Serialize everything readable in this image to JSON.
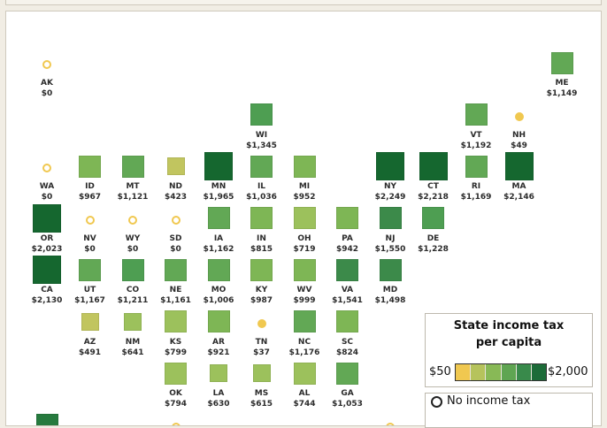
{
  "legend": {
    "title_line1": "State income tax",
    "title_line2": "per capita",
    "min_label": "$50",
    "max_label": "$2,000",
    "scale_colors": [
      "#f0c850",
      "#b6c35c",
      "#88b956",
      "#5fa552",
      "#398a4b",
      "#1c6b38"
    ],
    "no_tax_label": "No income tax"
  },
  "colors": {
    "no_tax_circle": "#f0c850",
    "scale": [
      "#c1c55f",
      "#9cc15c",
      "#7eb655",
      "#62a855",
      "#4e9e52",
      "#3c8a4a",
      "#267a3e",
      "#15672f"
    ]
  },
  "states": [
    {
      "abbr": "AK",
      "value": "$0",
      "amount": 0,
      "marker": "circle",
      "col": 0,
      "row": 0
    },
    {
      "abbr": "ME",
      "value": "$1,149",
      "amount": 1149,
      "marker": "square",
      "col": 12,
      "row": 0
    },
    {
      "abbr": "WI",
      "value": "$1,345",
      "amount": 1345,
      "marker": "square",
      "col": 5,
      "row": 1
    },
    {
      "abbr": "VT",
      "value": "$1,192",
      "amount": 1192,
      "marker": "square",
      "col": 10,
      "row": 1
    },
    {
      "abbr": "NH",
      "value": "$49",
      "amount": 49,
      "marker": "dot",
      "col": 11,
      "row": 1
    },
    {
      "abbr": "WA",
      "value": "$0",
      "amount": 0,
      "marker": "circle",
      "col": 0,
      "row": 2
    },
    {
      "abbr": "ID",
      "value": "$967",
      "amount": 967,
      "marker": "square",
      "col": 1,
      "row": 2
    },
    {
      "abbr": "MT",
      "value": "$1,121",
      "amount": 1121,
      "marker": "square",
      "col": 2,
      "row": 2
    },
    {
      "abbr": "ND",
      "value": "$423",
      "amount": 423,
      "marker": "square",
      "col": 3,
      "row": 2
    },
    {
      "abbr": "MN",
      "value": "$1,965",
      "amount": 1965,
      "marker": "square",
      "col": 4,
      "row": 2
    },
    {
      "abbr": "IL",
      "value": "$1,036",
      "amount": 1036,
      "marker": "square",
      "col": 5,
      "row": 2
    },
    {
      "abbr": "MI",
      "value": "$952",
      "amount": 952,
      "marker": "square",
      "col": 6,
      "row": 2
    },
    {
      "abbr": "NY",
      "value": "$2,249",
      "amount": 2249,
      "marker": "square",
      "col": 8,
      "row": 2
    },
    {
      "abbr": "CT",
      "value": "$2,218",
      "amount": 2218,
      "marker": "square",
      "col": 9,
      "row": 2
    },
    {
      "abbr": "RI",
      "value": "$1,169",
      "amount": 1169,
      "marker": "square",
      "col": 10,
      "row": 2
    },
    {
      "abbr": "MA",
      "value": "$2,146",
      "amount": 2146,
      "marker": "square",
      "col": 11,
      "row": 2
    },
    {
      "abbr": "OR",
      "value": "$2,023",
      "amount": 2023,
      "marker": "square",
      "col": 0,
      "row": 3
    },
    {
      "abbr": "NV",
      "value": "$0",
      "amount": 0,
      "marker": "circle",
      "col": 1,
      "row": 3
    },
    {
      "abbr": "WY",
      "value": "$0",
      "amount": 0,
      "marker": "circle",
      "col": 2,
      "row": 3
    },
    {
      "abbr": "SD",
      "value": "$0",
      "amount": 0,
      "marker": "circle",
      "col": 3,
      "row": 3
    },
    {
      "abbr": "IA",
      "value": "$1,162",
      "amount": 1162,
      "marker": "square",
      "col": 4,
      "row": 3
    },
    {
      "abbr": "IN",
      "value": "$815",
      "amount": 815,
      "marker": "square",
      "col": 5,
      "row": 3
    },
    {
      "abbr": "OH",
      "value": "$719",
      "amount": 719,
      "marker": "square",
      "col": 6,
      "row": 3
    },
    {
      "abbr": "PA",
      "value": "$942",
      "amount": 942,
      "marker": "square",
      "col": 7,
      "row": 3
    },
    {
      "abbr": "NJ",
      "value": "$1,550",
      "amount": 1550,
      "marker": "square",
      "col": 8,
      "row": 3
    },
    {
      "abbr": "DE",
      "value": "$1,228",
      "amount": 1228,
      "marker": "square",
      "col": 9,
      "row": 3
    },
    {
      "abbr": "CA",
      "value": "$2,130",
      "amount": 2130,
      "marker": "square",
      "col": 0,
      "row": 4
    },
    {
      "abbr": "UT",
      "value": "$1,167",
      "amount": 1167,
      "marker": "square",
      "col": 1,
      "row": 4
    },
    {
      "abbr": "CO",
      "value": "$1,211",
      "amount": 1211,
      "marker": "square",
      "col": 2,
      "row": 4
    },
    {
      "abbr": "NE",
      "value": "$1,161",
      "amount": 1161,
      "marker": "square",
      "col": 3,
      "row": 4
    },
    {
      "abbr": "MO",
      "value": "$1,006",
      "amount": 1006,
      "marker": "square",
      "col": 4,
      "row": 4
    },
    {
      "abbr": "KY",
      "value": "$987",
      "amount": 987,
      "marker": "square",
      "col": 5,
      "row": 4
    },
    {
      "abbr": "WV",
      "value": "$999",
      "amount": 999,
      "marker": "square",
      "col": 6,
      "row": 4
    },
    {
      "abbr": "VA",
      "value": "$1,541",
      "amount": 1541,
      "marker": "square",
      "col": 7,
      "row": 4
    },
    {
      "abbr": "MD",
      "value": "$1,498",
      "amount": 1498,
      "marker": "square",
      "col": 8,
      "row": 4
    },
    {
      "abbr": "AZ",
      "value": "$491",
      "amount": 491,
      "marker": "square",
      "col": 1,
      "row": 5
    },
    {
      "abbr": "NM",
      "value": "$641",
      "amount": 641,
      "marker": "square",
      "col": 2,
      "row": 5
    },
    {
      "abbr": "KS",
      "value": "$799",
      "amount": 799,
      "marker": "square",
      "col": 3,
      "row": 5
    },
    {
      "abbr": "AR",
      "value": "$921",
      "amount": 921,
      "marker": "square",
      "col": 4,
      "row": 5
    },
    {
      "abbr": "TN",
      "value": "$37",
      "amount": 37,
      "marker": "dot",
      "col": 5,
      "row": 5
    },
    {
      "abbr": "NC",
      "value": "$1,176",
      "amount": 1176,
      "marker": "square",
      "col": 6,
      "row": 5
    },
    {
      "abbr": "SC",
      "value": "$824",
      "amount": 824,
      "marker": "square",
      "col": 7,
      "row": 5
    },
    {
      "abbr": "OK",
      "value": "$794",
      "amount": 794,
      "marker": "square",
      "col": 3,
      "row": 6
    },
    {
      "abbr": "LA",
      "value": "$630",
      "amount": 630,
      "marker": "square",
      "col": 4,
      "row": 6
    },
    {
      "abbr": "MS",
      "value": "$615",
      "amount": 615,
      "marker": "square",
      "col": 5,
      "row": 6
    },
    {
      "abbr": "AL",
      "value": "$744",
      "amount": 744,
      "marker": "square",
      "col": 6,
      "row": 6
    },
    {
      "abbr": "GA",
      "value": "$1,053",
      "amount": 1053,
      "marker": "square",
      "col": 7,
      "row": 6
    }
  ],
  "partial_markers": [
    {
      "marker": "square",
      "amount": 1700,
      "col": 0,
      "row": 7
    },
    {
      "marker": "circle",
      "amount": 0,
      "col": 3,
      "row": 7
    },
    {
      "marker": "circle",
      "amount": 0,
      "col": 8,
      "row": 7
    }
  ]
}
